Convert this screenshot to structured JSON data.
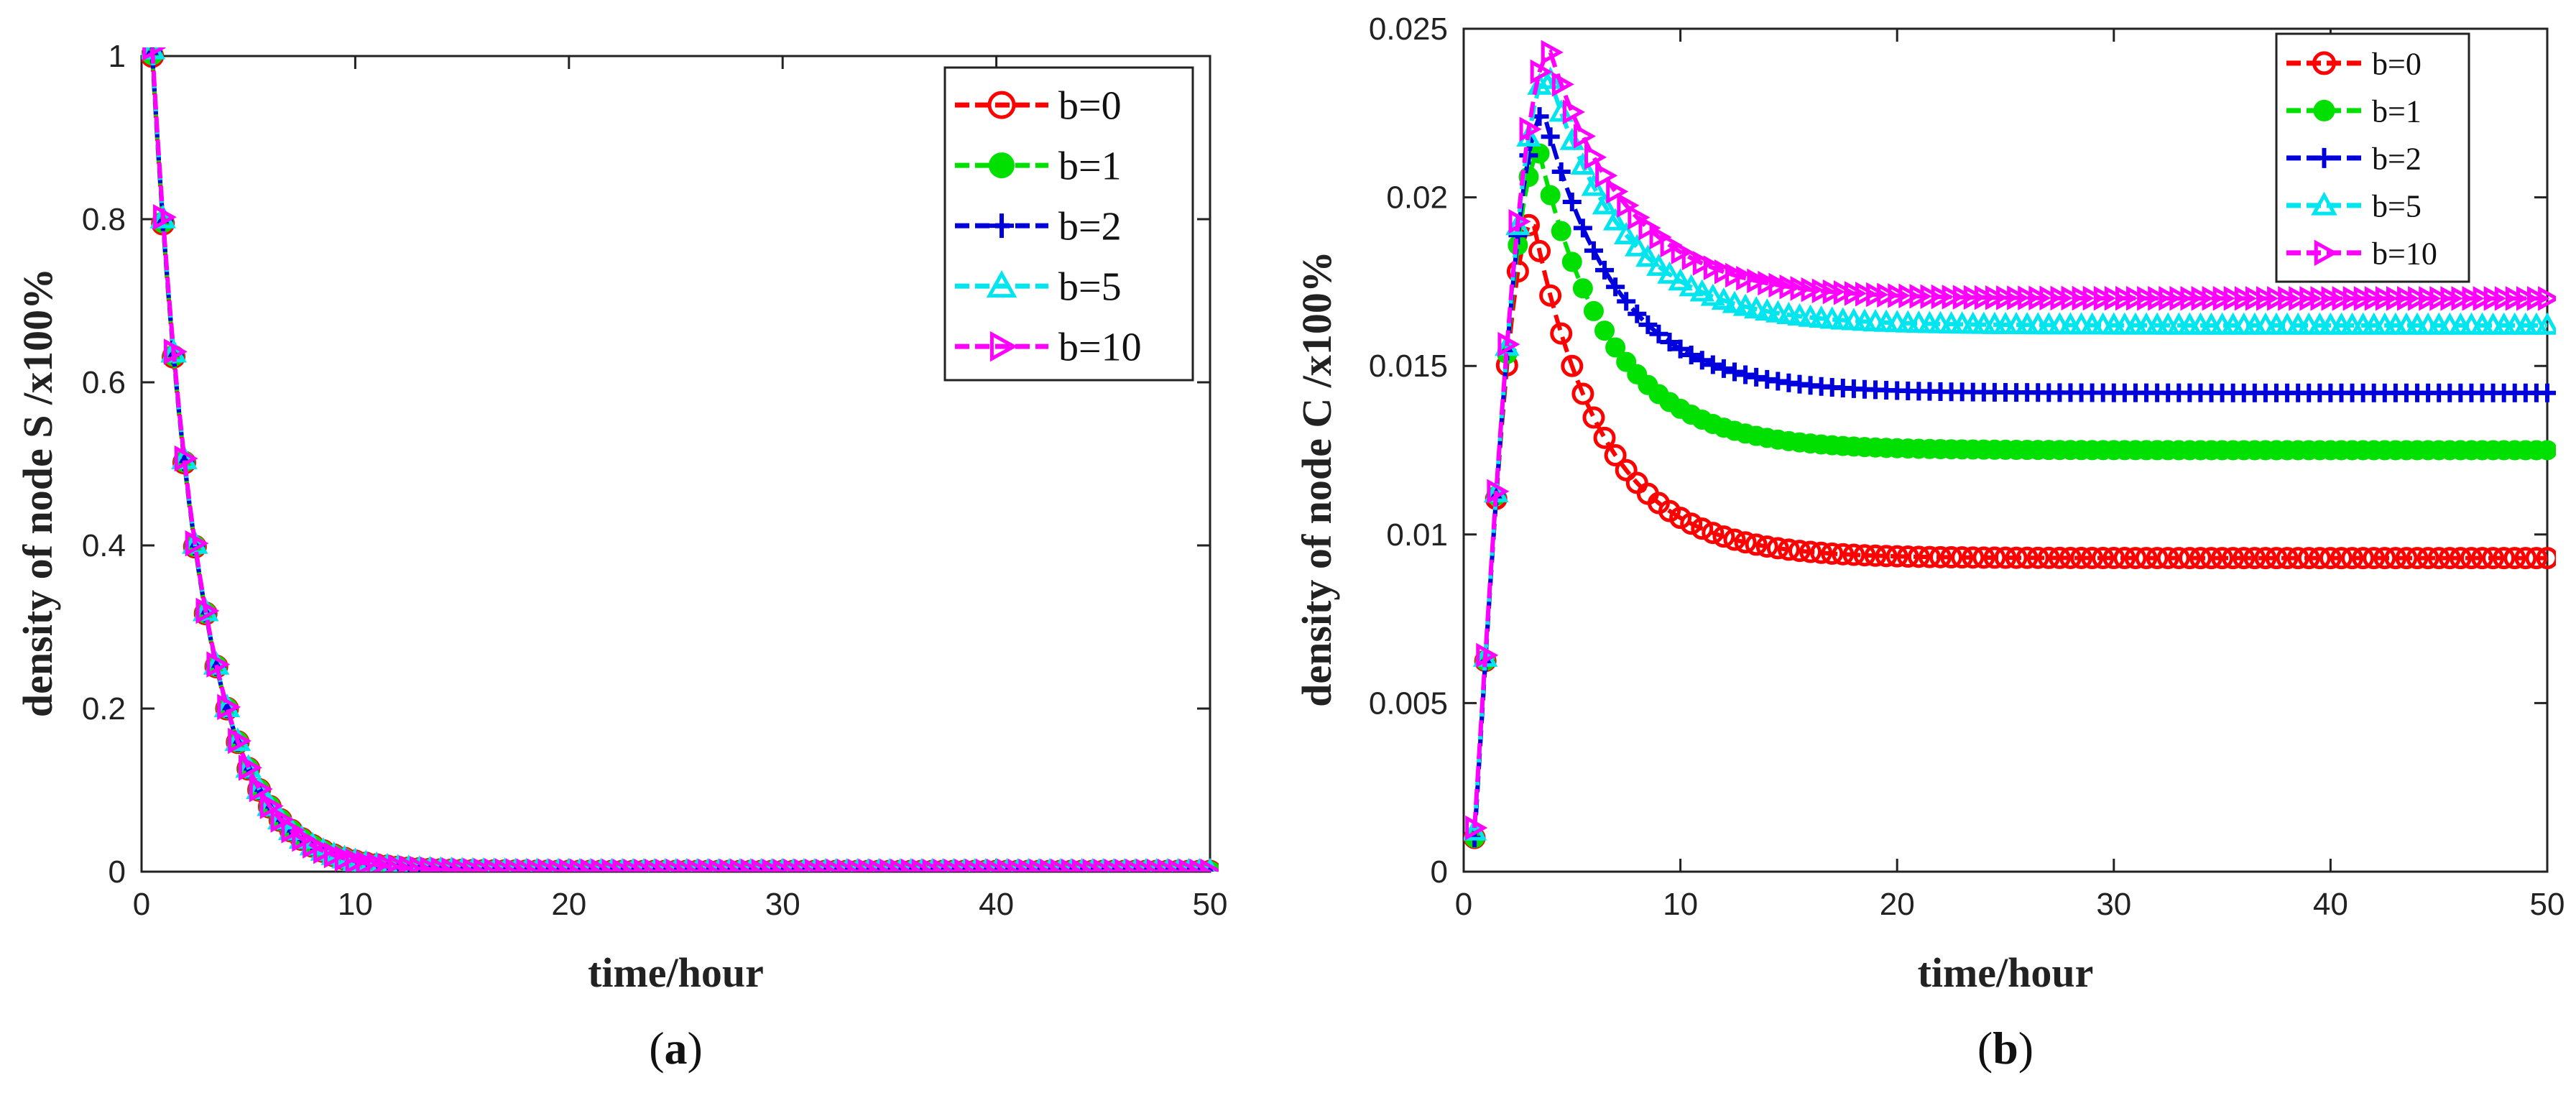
{
  "chart_data": [
    {
      "type": "line",
      "panel_label_open": "(",
      "panel_label_letter": "a",
      "panel_label_close": ")",
      "xlabel": "time/hour",
      "ylabel": "density of node S /x100%",
      "xlim": [
        0,
        50
      ],
      "ylim": [
        0,
        1
      ],
      "xticks": [
        "0",
        "10",
        "20",
        "30",
        "40",
        "50"
      ],
      "yticks": [
        "0",
        "0.2",
        "0.4",
        "0.6",
        "0.8",
        "1"
      ],
      "legend_position": "top-right",
      "series": [
        {
          "name": "b=0",
          "color": "#ff0000",
          "marker": "circle-open"
        },
        {
          "name": "b=1",
          "color": "#00e000",
          "marker": "circle-filled"
        },
        {
          "name": "b=2",
          "color": "#0000dd",
          "marker": "plus"
        },
        {
          "name": "b=5",
          "color": "#00e5ee",
          "marker": "triangle-up"
        },
        {
          "name": "b=10",
          "color": "#ff00ff",
          "marker": "triangle-right"
        }
      ],
      "model": {
        "kind": "decay",
        "y0": 1.0,
        "rate": 0.46,
        "spread": [
          0,
          0.002,
          0.004,
          0.008,
          0.01
        ]
      }
    },
    {
      "type": "line",
      "panel_label_open": "(",
      "panel_label_letter": "b",
      "panel_label_close": ")",
      "xlabel": "time/hour",
      "ylabel": "density of node C /x100%",
      "xlim": [
        0,
        50
      ],
      "ylim": [
        0,
        0.025
      ],
      "xticks": [
        "0",
        "10",
        "20",
        "30",
        "40",
        "50"
      ],
      "yticks": [
        "0",
        "0.005",
        "0.01",
        "0.015",
        "0.02",
        "0.025"
      ],
      "legend_position": "top-right",
      "series": [
        {
          "name": "b=0",
          "color": "#ff0000",
          "marker": "circle-open",
          "start": 0.001,
          "peak": 0.0193,
          "t_peak": 3.2,
          "steady": 0.0093,
          "tau": 3.2
        },
        {
          "name": "b=1",
          "color": "#00e000",
          "marker": "circle-filled",
          "start": 0.001,
          "peak": 0.0213,
          "t_peak": 3.5,
          "steady": 0.0125,
          "tau": 3.3
        },
        {
          "name": "b=2",
          "color": "#0000dd",
          "marker": "plus",
          "start": 0.001,
          "peak": 0.0225,
          "t_peak": 3.7,
          "steady": 0.0142,
          "tau": 3.4
        },
        {
          "name": "b=5",
          "color": "#00e5ee",
          "marker": "triangle-up",
          "start": 0.0012,
          "peak": 0.0237,
          "t_peak": 3.9,
          "steady": 0.0162,
          "tau": 3.5
        },
        {
          "name": "b=10",
          "color": "#ff00ff",
          "marker": "triangle-right",
          "start": 0.0013,
          "peak": 0.0243,
          "t_peak": 4.0,
          "steady": 0.017,
          "tau": 3.6
        }
      ]
    }
  ]
}
